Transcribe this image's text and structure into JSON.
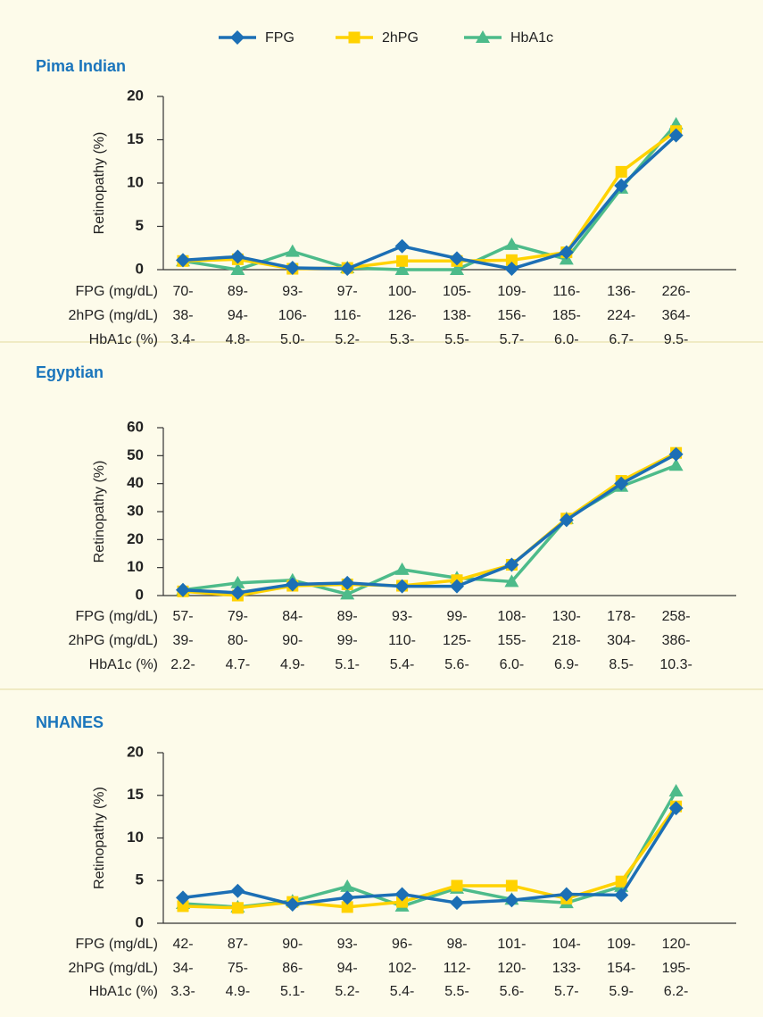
{
  "chart_data": [
    {
      "type": "line",
      "title": "Pima Indian",
      "ylabel": "Retinopathy (%)",
      "ylim": [
        0,
        20
      ],
      "yticks": [
        0,
        5,
        10,
        15,
        20
      ],
      "category_rows": [
        {
          "name": "FPG (mg/dL)",
          "labels": [
            "70-",
            "89-",
            "93-",
            "97-",
            "100-",
            "105-",
            "109-",
            "116-",
            "136-",
            "226-"
          ]
        },
        {
          "name": "2hPG (mg/dL)",
          "labels": [
            "38-",
            "94-",
            "106-",
            "116-",
            "126-",
            "138-",
            "156-",
            "185-",
            "224-",
            "364-"
          ]
        },
        {
          "name": "HbA1c (%)",
          "labels": [
            "3.4-",
            "4.8-",
            "5.0-",
            "5.2-",
            "5.3-",
            "5.5-",
            "5.7-",
            "6.0-",
            "6.7-",
            "9.5-"
          ]
        }
      ],
      "series": [
        {
          "name": "FPG",
          "color": "#1c6fb5",
          "marker": "diamond",
          "values": [
            1.1,
            1.5,
            0.2,
            0.1,
            2.7,
            1.3,
            0.1,
            2.0,
            9.7,
            15.5
          ]
        },
        {
          "name": "2hPG",
          "color": "#ffd200",
          "marker": "square",
          "values": [
            1.0,
            1.2,
            0.1,
            0.2,
            1.0,
            1.0,
            1.1,
            2.0,
            11.3,
            16.0
          ]
        },
        {
          "name": "HbA1c",
          "color": "#4dbb8a",
          "marker": "triangle",
          "values": [
            1.0,
            0.0,
            2.1,
            0.2,
            0.0,
            0.0,
            2.9,
            1.2,
            9.4,
            16.8
          ]
        }
      ]
    },
    {
      "type": "line",
      "title": "Egyptian",
      "ylabel": "Retinopathy (%)",
      "ylim": [
        0,
        60
      ],
      "yticks": [
        0,
        10,
        20,
        30,
        40,
        50,
        60
      ],
      "category_rows": [
        {
          "name": "FPG (mg/dL)",
          "labels": [
            "57-",
            "79-",
            "84-",
            "89-",
            "93-",
            "99-",
            "108-",
            "130-",
            "178-",
            "258-"
          ]
        },
        {
          "name": "2hPG (mg/dL)",
          "labels": [
            "39-",
            "80-",
            "90-",
            "99-",
            "110-",
            "125-",
            "155-",
            "218-",
            "304-",
            "386-"
          ]
        },
        {
          "name": "HbA1c (%)",
          "labels": [
            "2.2-",
            "4.7-",
            "4.9-",
            "5.1-",
            "5.4-",
            "5.6-",
            "6.0-",
            "6.9-",
            "8.5-",
            "10.3-"
          ]
        }
      ],
      "series": [
        {
          "name": "FPG",
          "color": "#1c6fb5",
          "marker": "diamond",
          "values": [
            2,
            1,
            4,
            4.5,
            3.3,
            3.3,
            11,
            27,
            40,
            50.5
          ]
        },
        {
          "name": "2hPG",
          "color": "#ffd200",
          "marker": "square",
          "values": [
            1.5,
            0,
            3.5,
            4,
            3.5,
            5.5,
            11,
            27.5,
            41,
            51
          ]
        },
        {
          "name": "HbA1c",
          "color": "#4dbb8a",
          "marker": "triangle",
          "values": [
            2,
            4.5,
            5.5,
            0.5,
            9.3,
            6.3,
            5,
            27.5,
            39,
            46.5
          ]
        }
      ]
    },
    {
      "type": "line",
      "title": "NHANES",
      "ylabel": "Retinopathy (%)",
      "ylim": [
        0,
        20
      ],
      "yticks": [
        0,
        5,
        10,
        15,
        20
      ],
      "category_rows": [
        {
          "name": "FPG (mg/dL)",
          "labels": [
            "42-",
            "87-",
            "90-",
            "93-",
            "96-",
            "98-",
            "101-",
            "104-",
            "109-",
            "120-"
          ]
        },
        {
          "name": "2hPG (mg/dL)",
          "labels": [
            "34-",
            "75-",
            "86-",
            "94-",
            "102-",
            "112-",
            "120-",
            "133-",
            "154-",
            "195-"
          ]
        },
        {
          "name": "HbA1c (%)",
          "labels": [
            "3.3-",
            "4.9-",
            "5.1-",
            "5.2-",
            "5.4-",
            "5.5-",
            "5.6-",
            "5.7-",
            "5.9-",
            "6.2-"
          ]
        }
      ],
      "series": [
        {
          "name": "FPG",
          "color": "#1c6fb5",
          "marker": "diamond",
          "values": [
            3.0,
            3.8,
            2.2,
            3.0,
            3.4,
            2.4,
            2.7,
            3.4,
            3.3,
            13.5
          ]
        },
        {
          "name": "2hPG",
          "color": "#ffd200",
          "marker": "square",
          "values": [
            2.0,
            1.8,
            2.5,
            1.9,
            2.5,
            4.4,
            4.4,
            2.9,
            4.9,
            13.7
          ]
        },
        {
          "name": "HbA1c",
          "color": "#4dbb8a",
          "marker": "triangle",
          "values": [
            2.3,
            1.9,
            2.6,
            4.3,
            2.0,
            4.1,
            2.8,
            2.4,
            4.3,
            15.5
          ]
        }
      ]
    }
  ]
}
